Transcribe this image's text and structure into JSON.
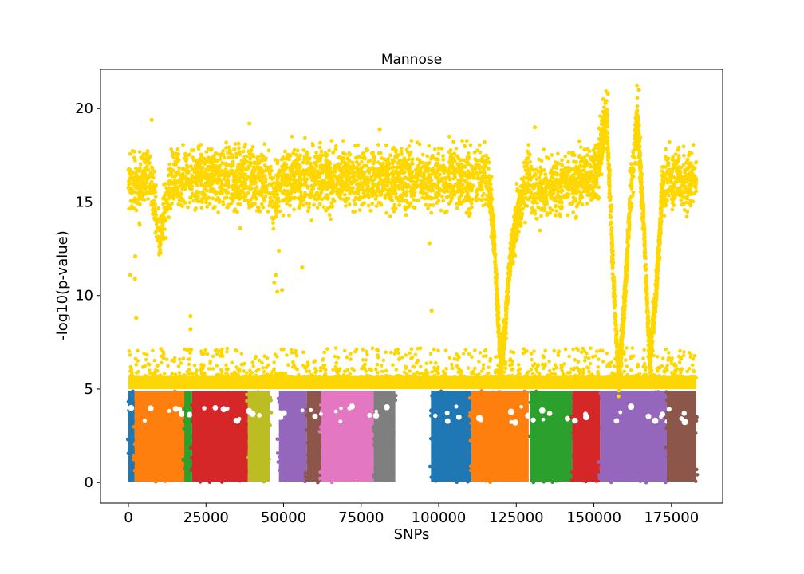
{
  "chart_data": {
    "type": "scatter",
    "title": "Mannose",
    "xlabel": "SNPs",
    "ylabel": "-log10(p-value)",
    "xlim": [
      -9000,
      191500
    ],
    "ylim": [
      -1.1,
      22.1
    ],
    "xticks": [
      0,
      25000,
      50000,
      75000,
      100000,
      125000,
      150000,
      175000
    ],
    "yticks": [
      0,
      5,
      10,
      15,
      20
    ],
    "grid": false,
    "legend": "none",
    "marker": "star",
    "significance_threshold": 5,
    "significant_color": "#ffd700",
    "chromosome_blocks": [
      {
        "x_start": 0,
        "x_end": 2000,
        "color": "#1f77b4"
      },
      {
        "x_start": 2000,
        "x_end": 18000,
        "color": "#ff7f0e"
      },
      {
        "x_start": 18000,
        "x_end": 20500,
        "color": "#2ca02c"
      },
      {
        "x_start": 20500,
        "x_end": 38500,
        "color": "#d62728"
      },
      {
        "x_start": 38500,
        "x_end": 45500,
        "color": "#bcbd22"
      },
      {
        "x_start": 48500,
        "x_end": 57500,
        "color": "#9467bd"
      },
      {
        "x_start": 57500,
        "x_end": 62000,
        "color": "#8c564b"
      },
      {
        "x_start": 62000,
        "x_end": 79000,
        "color": "#e377c2"
      },
      {
        "x_start": 79000,
        "x_end": 86000,
        "color": "#7f7f7f"
      },
      {
        "x_start": 97500,
        "x_end": 110500,
        "color": "#1f77b4"
      },
      {
        "x_start": 110500,
        "x_end": 129000,
        "color": "#ff7f0e"
      },
      {
        "x_start": 129500,
        "x_end": 143000,
        "color": "#2ca02c"
      },
      {
        "x_start": 143000,
        "x_end": 152000,
        "color": "#d62728"
      },
      {
        "x_start": 152000,
        "x_end": 173500,
        "color": "#9467bd"
      },
      {
        "x_start": 173500,
        "x_end": 183000,
        "color": "#8c564b"
      }
    ],
    "significant_profile": [
      {
        "x": 0,
        "y": 16.3
      },
      {
        "x": 3000,
        "y": 15.8
      },
      {
        "x": 6000,
        "y": 16.5
      },
      {
        "x": 8000,
        "y": 15.5
      },
      {
        "x": 10000,
        "y": 12.8
      },
      {
        "x": 12000,
        "y": 15.0
      },
      {
        "x": 14000,
        "y": 16.3
      },
      {
        "x": 45000,
        "y": 16.3
      },
      {
        "x": 47000,
        "y": 15.3
      },
      {
        "x": 50000,
        "y": 16.3
      },
      {
        "x": 116000,
        "y": 16.3
      },
      {
        "x": 118000,
        "y": 12.5
      },
      {
        "x": 120000,
        "y": 6.0
      },
      {
        "x": 121500,
        "y": 8.5
      },
      {
        "x": 123000,
        "y": 12.0
      },
      {
        "x": 125000,
        "y": 14.0
      },
      {
        "x": 127000,
        "y": 15.5
      },
      {
        "x": 129000,
        "y": 16.8
      },
      {
        "x": 130000,
        "y": 15.5
      },
      {
        "x": 151000,
        "y": 16.5
      },
      {
        "x": 153000,
        "y": 18.5
      },
      {
        "x": 154000,
        "y": 20.0
      },
      {
        "x": 155000,
        "y": 16.0
      },
      {
        "x": 156000,
        "y": 12.0
      },
      {
        "x": 157000,
        "y": 8.5
      },
      {
        "x": 158000,
        "y": 5.5
      },
      {
        "x": 160000,
        "y": 10.0
      },
      {
        "x": 162000,
        "y": 16.0
      },
      {
        "x": 164000,
        "y": 19.5
      },
      {
        "x": 166000,
        "y": 14.0
      },
      {
        "x": 168000,
        "y": 6.5
      },
      {
        "x": 170000,
        "y": 10.0
      },
      {
        "x": 172000,
        "y": 15.5
      },
      {
        "x": 174000,
        "y": 16.3
      },
      {
        "x": 183000,
        "y": 16.3
      }
    ],
    "notable_points": [
      {
        "x": 7500,
        "y": 19.4
      },
      {
        "x": 39000,
        "y": 19.2
      },
      {
        "x": 81000,
        "y": 18.9
      },
      {
        "x": 153000,
        "y": 20.5
      },
      {
        "x": 154500,
        "y": 20.8
      },
      {
        "x": 164500,
        "y": 21.0
      },
      {
        "x": 131000,
        "y": 19.0
      },
      {
        "x": 600,
        "y": 11.1
      },
      {
        "x": 2200,
        "y": 12.1
      },
      {
        "x": 2100,
        "y": 10.9
      },
      {
        "x": 2500,
        "y": 8.8
      },
      {
        "x": 20000,
        "y": 8.9
      },
      {
        "x": 20000,
        "y": 8.2
      },
      {
        "x": 47000,
        "y": 10.7
      },
      {
        "x": 47500,
        "y": 11.1
      },
      {
        "x": 48000,
        "y": 10.2
      },
      {
        "x": 48500,
        "y": 12.4
      },
      {
        "x": 49500,
        "y": 10.3
      },
      {
        "x": 56000,
        "y": 11.5
      },
      {
        "x": 97700,
        "y": 9.2
      },
      {
        "x": 97000,
        "y": 12.8
      },
      {
        "x": 36000,
        "y": 13.6
      }
    ]
  }
}
